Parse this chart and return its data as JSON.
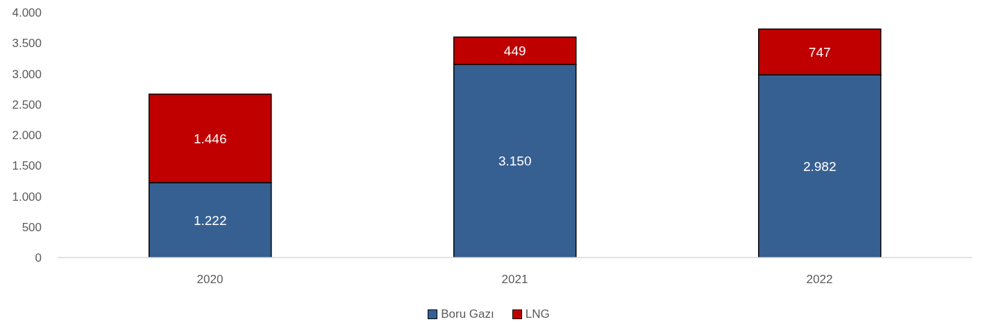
{
  "chart_data": {
    "type": "bar",
    "stacked": true,
    "categories": [
      "2020",
      "2021",
      "2022"
    ],
    "series": [
      {
        "name": "Boru Gazı",
        "color": "#376092",
        "values": [
          1222,
          3150,
          2982
        ],
        "value_labels": [
          "1.222",
          "3.150",
          "2.982"
        ]
      },
      {
        "name": "LNG",
        "color": "#c00000",
        "values": [
          1446,
          449,
          747
        ],
        "value_labels": [
          "1.446",
          "449",
          "747"
        ]
      }
    ],
    "ylim": [
      0,
      4000
    ],
    "yticks": [
      0,
      500,
      {
        "value": 1000,
        "label": "1.000"
      },
      {
        "value": 1500,
        "label": "1.500"
      },
      {
        "value": 2000,
        "label": "2.000"
      },
      {
        "value": 2500,
        "label": "2.500"
      },
      {
        "value": 3000,
        "label": "3.000"
      },
      {
        "value": 3500,
        "label": "3.500"
      },
      {
        "value": 4000,
        "label": "4.000"
      }
    ],
    "legend": "bottom",
    "grid": false
  }
}
